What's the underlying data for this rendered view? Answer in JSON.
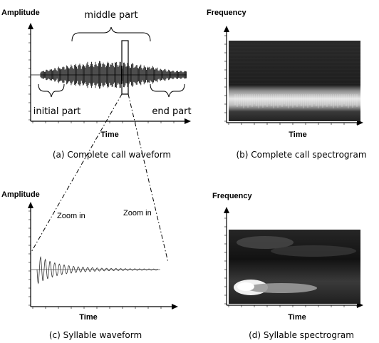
{
  "panels": {
    "a": {
      "y_label": "Amplitude",
      "x_label": "Time",
      "caption": "(a) Complete call waveform",
      "parts": {
        "middle": "middle part",
        "initial": "initial part",
        "end": "end part"
      }
    },
    "b": {
      "y_label": "Frequency",
      "x_label": "Time",
      "caption": "(b) Complete call spectrogram"
    },
    "c": {
      "y_label": "Amplitude",
      "x_label": "Time",
      "caption": "(c) Syllable waveform",
      "zoom_left": "Zoom in",
      "zoom_right": "Zoom in"
    },
    "d": {
      "y_label": "Frequency",
      "x_label": "Time",
      "caption": "(d) Syllable spectrogram"
    }
  },
  "colors": {
    "axis": "#000000",
    "background": "#ffffff",
    "spectro_dark": "#1a1a1a",
    "spectro_bright": "#f2f2f2"
  }
}
